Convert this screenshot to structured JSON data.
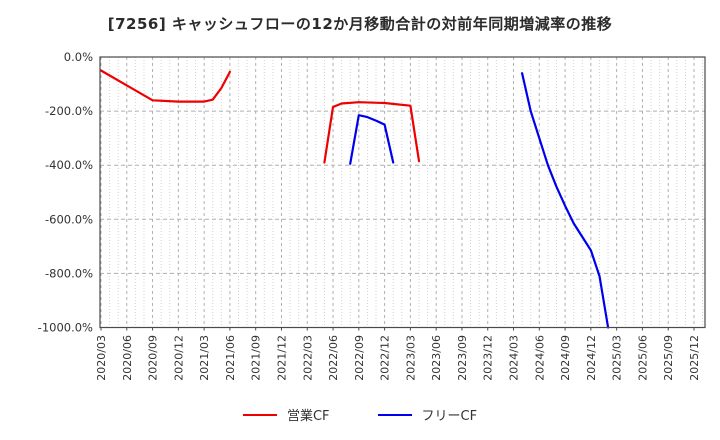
{
  "title": "[7256]  キャッシュフローの12か月移動合計の対前年同期増減率の推移",
  "chart_data": {
    "type": "line",
    "title": "[7256]  キャッシュフローの12か月移動合計の対前年同期増減率の推移",
    "xlabel": "",
    "ylabel": "",
    "ylim": [
      -1000,
      0
    ],
    "y_ticks": [
      {
        "value": 0,
        "label": "0.0%"
      },
      {
        "value": -200,
        "label": "-200.0%"
      },
      {
        "value": -400,
        "label": "-400.0%"
      },
      {
        "value": -600,
        "label": "-600.0%"
      },
      {
        "value": -800,
        "label": "-800.0%"
      },
      {
        "value": -1000,
        "label": "-1000.0%"
      }
    ],
    "x_tick_labels": [
      "2020/03",
      "2020/06",
      "2020/09",
      "2020/12",
      "2021/03",
      "2021/06",
      "2021/09",
      "2021/12",
      "2022/03",
      "2022/06",
      "2022/09",
      "2022/12",
      "2023/03",
      "2023/06",
      "2023/09",
      "2023/12",
      "2024/03",
      "2024/06",
      "2024/09",
      "2024/12",
      "2025/03",
      "2025/06",
      "2025/09",
      "2025/12"
    ],
    "grid": {
      "major": "dashed",
      "minor_vertical": "dotted-monthly"
    },
    "legend_position": "bottom-center",
    "series": [
      {
        "name": "営業CF",
        "color": "#ee0000",
        "segments": [
          [
            [
              "2020/03",
              -50
            ],
            [
              "2020/06",
              -105
            ],
            [
              "2020/09",
              -160
            ],
            [
              "2020/12",
              -165
            ],
            [
              "2021/03",
              -165
            ],
            [
              "2021/04",
              -158
            ],
            [
              "2021/05",
              -115
            ],
            [
              "2021/06",
              -55
            ]
          ],
          [
            [
              "2022/05",
              -390
            ],
            [
              "2022/06",
              -185
            ],
            [
              "2022/07",
              -172
            ],
            [
              "2022/09",
              -167
            ],
            [
              "2022/12",
              -170
            ],
            [
              "2023/03",
              -180
            ],
            [
              "2023/04",
              -385
            ]
          ]
        ]
      },
      {
        "name": "フリーCF",
        "color": "#0000ee",
        "segments": [
          [
            [
              "2022/08",
              -395
            ],
            [
              "2022/09",
              -215
            ],
            [
              "2022/10",
              -222
            ],
            [
              "2022/11",
              -235
            ],
            [
              "2022/12",
              -250
            ],
            [
              "2023/01",
              -390
            ]
          ],
          [
            [
              "2024/04",
              -60
            ],
            [
              "2024/05",
              -200
            ],
            [
              "2024/06",
              -300
            ],
            [
              "2024/07",
              -400
            ],
            [
              "2024/08",
              -480
            ],
            [
              "2024/09",
              -550
            ],
            [
              "2024/10",
              -615
            ],
            [
              "2024/11",
              -665
            ],
            [
              "2024/12",
              -715
            ],
            [
              "2025/01",
              -810
            ],
            [
              "2025/02",
              -1000
            ]
          ]
        ]
      }
    ],
    "colors": {
      "grid_major": "#b0b0b0",
      "grid_minor": "#d2d2d2",
      "axis_border": "#4a4a4a",
      "tick_text": "#333333"
    }
  }
}
